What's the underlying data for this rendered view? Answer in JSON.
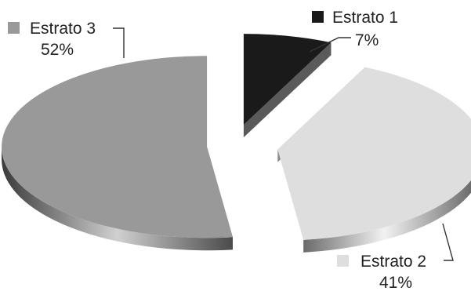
{
  "chart_data": {
    "type": "pie",
    "three_d": true,
    "exploded": true,
    "title": "",
    "legend_placement": "around-pie",
    "slices": [
      {
        "name": "Estrato 1",
        "value": 7,
        "value_label": "7%",
        "color": "#1a1a1a",
        "side_color": "#777777"
      },
      {
        "name": "Estrato 2",
        "value": 41,
        "value_label": "41%",
        "color": "#dedede",
        "side_color": "#9a9a9a"
      },
      {
        "name": "Estrato 3",
        "value": 52,
        "value_label": "52%",
        "color": "#999999",
        "side_color": "#5e5e5e"
      }
    ]
  }
}
